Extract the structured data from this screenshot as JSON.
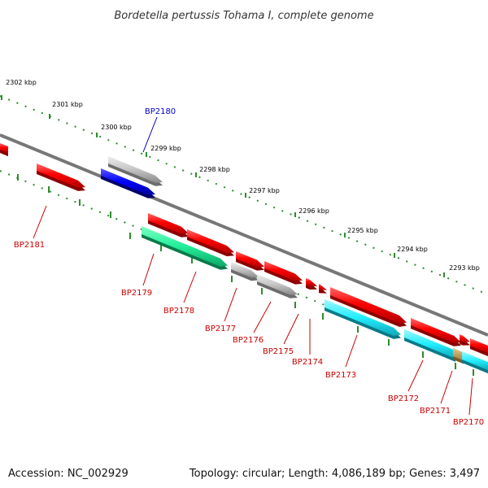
{
  "title": "Bordetella pertussis Tohama I, complete genome",
  "footer": {
    "accession": "Accession: NC_002929",
    "summary": "Topology: circular; Length: 4,086,189 bp; Genes: 3,497"
  },
  "scale_labels": [
    "2302 kbp",
    "2301 kbp",
    "2300 kbp",
    "2299 kbp",
    "2298 kbp",
    "2297 kbp",
    "2296 kbp",
    "2295 kbp",
    "2294 kbp",
    "2293 kbp"
  ],
  "gene_labels": [
    "BP2180",
    "BP2181",
    "BP2179",
    "BP2178",
    "BP2177",
    "BP2176",
    "BP2175",
    "BP2174",
    "BP2173",
    "BP2172",
    "BP2171",
    "BP2170"
  ],
  "colors": {
    "backbone": "#777777",
    "tick": "#2e8b2e",
    "label_forward": "#0000cc",
    "label_reverse": "#cc0000",
    "red": "#ff0000",
    "grey": "#c0c0c0",
    "blue": "#0000ff",
    "green": "#22ee99",
    "cyan": "#22eeff",
    "tan": "#c8a860"
  }
}
